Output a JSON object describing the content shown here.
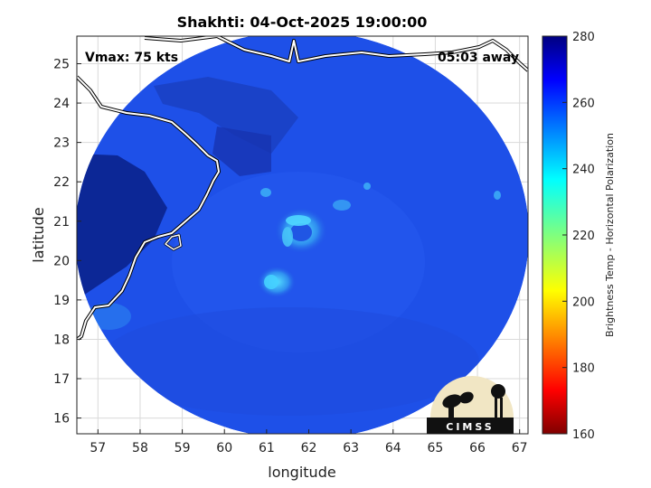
{
  "title": "Shakhti: 04-Oct-2025 19:00:00",
  "annotations": {
    "vmax": "Vmax: 75 kts",
    "time_away": "05:03 away"
  },
  "axes": {
    "xlabel": "longitude",
    "ylabel": "latitude",
    "xlim": [
      56.5,
      67.2
    ],
    "ylim": [
      15.6,
      25.7
    ],
    "xticks": [
      "57",
      "58",
      "59",
      "60",
      "61",
      "62",
      "63",
      "64",
      "65",
      "66",
      "67"
    ],
    "yticks": [
      "16",
      "17",
      "18",
      "19",
      "20",
      "21",
      "22",
      "23",
      "24",
      "25"
    ]
  },
  "colorbar": {
    "label": "Brightness Temp - Horizontal Polarization",
    "min": 160,
    "max": 280,
    "ticks": [
      "160",
      "180",
      "200",
      "220",
      "240",
      "260",
      "280"
    ],
    "colormap": "jet"
  },
  "logo": {
    "text": "CIMSS"
  },
  "colors": {
    "disk_main": "#1f4fe6",
    "disk_cold": "#0d2aa8",
    "eye_wall": "#33d1f5",
    "coast": "#ffffff"
  }
}
